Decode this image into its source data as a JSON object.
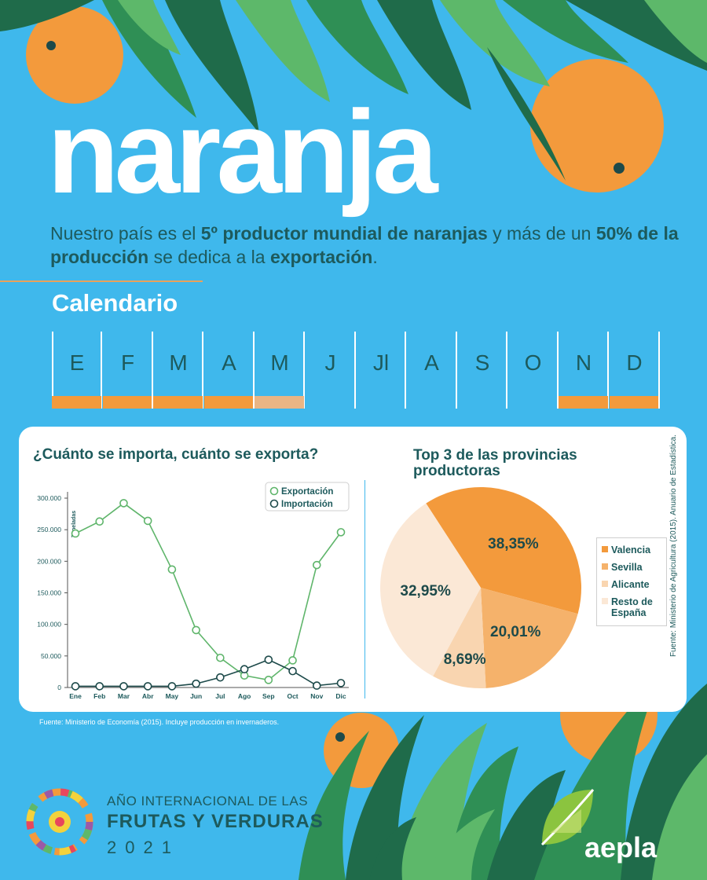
{
  "title": "naranja",
  "subtitle": {
    "parts": [
      {
        "t": "Nuestro país es el ",
        "b": false
      },
      {
        "t": "5º productor mundial de naranjas",
        "b": true
      },
      {
        "t": " y más de un ",
        "b": false
      },
      {
        "t": "50% de la producción",
        "b": true
      },
      {
        "t": " se dedica a la ",
        "b": false
      },
      {
        "t": "exportación",
        "b": true
      },
      {
        "t": ".",
        "b": false
      }
    ]
  },
  "calendar": {
    "title": "Calendario",
    "months": [
      "E",
      "F",
      "M",
      "A",
      "M",
      "J",
      "Jl",
      "A",
      "S",
      "O",
      "N",
      "D"
    ],
    "season": [
      true,
      true,
      true,
      true,
      "light",
      false,
      false,
      false,
      false,
      false,
      true,
      true
    ],
    "colors": {
      "season": "#f39a3c",
      "season_light": "#e9b584"
    }
  },
  "chart_data": [
    {
      "type": "line",
      "title": "¿Cuánto se importa, cuánto se exporta?",
      "ylabel": "Toneladas",
      "xlabel": "",
      "ylim": [
        0,
        300000
      ],
      "yticks": [
        "0",
        "50.000",
        "100.000",
        "150.000",
        "200.000",
        "250.000",
        "300.000"
      ],
      "categories": [
        "Ene",
        "Feb",
        "Mar",
        "Abr",
        "May",
        "Jun",
        "Jul",
        "Ago",
        "Sep",
        "Oct",
        "Nov",
        "Dic"
      ],
      "series": [
        {
          "name": "Exportación",
          "color": "#5fb56b",
          "values": [
            244000,
            263000,
            292000,
            264000,
            187000,
            91000,
            47000,
            19000,
            12000,
            43000,
            194000,
            246000
          ]
        },
        {
          "name": "Importación",
          "color": "#1d4a4a",
          "values": [
            2000,
            2000,
            2000,
            2000,
            2000,
            6000,
            16000,
            29000,
            44000,
            26000,
            3000,
            7000
          ]
        }
      ],
      "legend": "top-right",
      "grid": false
    },
    {
      "type": "pie",
      "title": "Top 3 de las provincias productoras",
      "slices": [
        {
          "name": "Valencia",
          "value": 38.35,
          "label": "38,35%",
          "color": "#f39a3c"
        },
        {
          "name": "Sevilla",
          "value": 20.01,
          "label": "20,01%",
          "color": "#f5b26b"
        },
        {
          "name": "Alicante",
          "value": 8.69,
          "label": "8,69%",
          "color": "#f9d5b0"
        },
        {
          "name": "Resto de España",
          "value": 32.95,
          "label": "32,95%",
          "color": "#fbe8d6"
        }
      ],
      "legend": "right"
    }
  ],
  "sources": {
    "left": "Fuente: Ministerio de Economía (2015). Incluye producción en invernaderos.",
    "right": "Fuente: Ministerio de Agricultura (2015). Anuario de Estadística."
  },
  "footer": {
    "line1": "AÑO INTERNACIONAL DE LAS",
    "line2": "FRUTAS Y VERDURAS",
    "year": "2021",
    "brand": "aepla"
  },
  "colors": {
    "background": "#3fb8ec",
    "text_dark": "#1d5a5c",
    "orange": "#f39a3c",
    "leaf_dark": "#1f6b4a",
    "leaf_mid": "#2f8f55",
    "leaf_light": "#5db86a"
  }
}
